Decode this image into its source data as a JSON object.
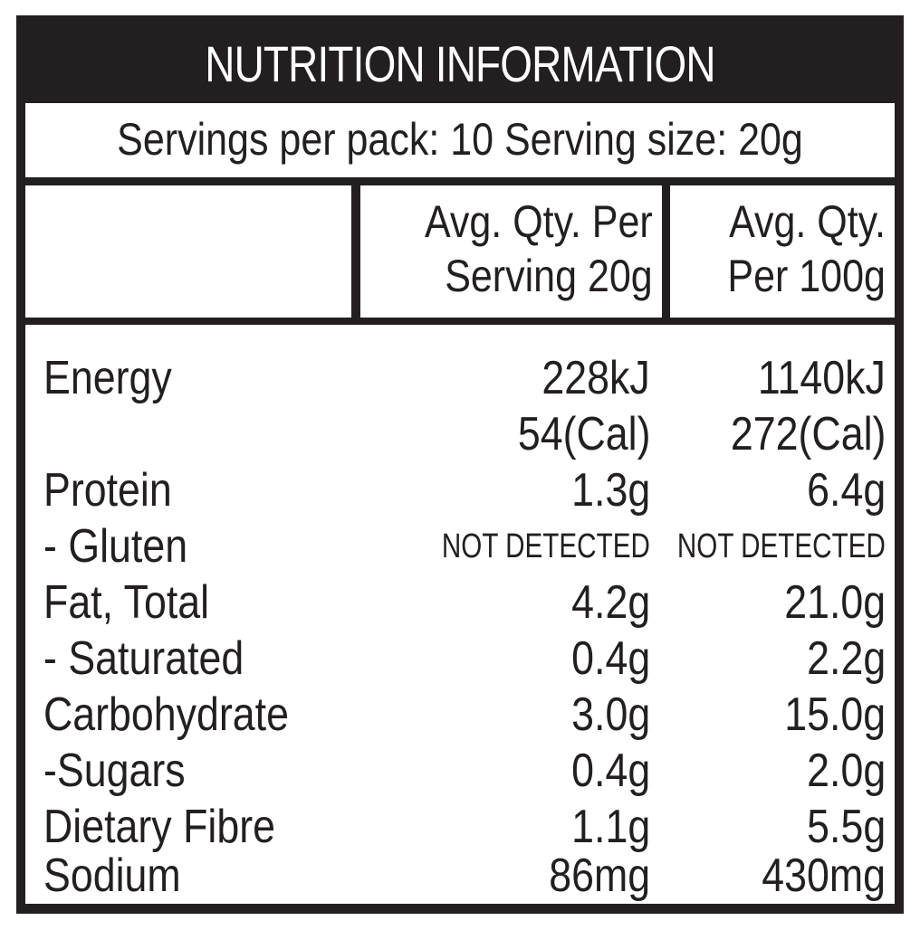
{
  "title": "NUTRITION INFORMATION",
  "servings_line": "Servings per pack: 10 Serving size: 20g",
  "headers": {
    "per_serving_line1": "Avg. Qty. Per",
    "per_serving_line2": "Serving 20g",
    "per_100g_line1": "Avg. Qty.",
    "per_100g_line2": "Per 100g"
  },
  "rows": [
    {
      "label": "Energy",
      "per_serving": "228kJ",
      "per_100g": "1140kJ"
    },
    {
      "label": "",
      "per_serving": "54(Cal)",
      "per_100g": "272(Cal)"
    },
    {
      "label": "Protein",
      "per_serving": "1.3g",
      "per_100g": "6.4g"
    },
    {
      "label": "- Gluten",
      "per_serving": "NOT DETECTED",
      "per_100g": "NOT DETECTED"
    },
    {
      "label": "Fat, Total",
      "per_serving": "4.2g",
      "per_100g": "21.0g"
    },
    {
      "label": "- Saturated",
      "per_serving": "0.4g",
      "per_100g": "2.2g"
    },
    {
      "label": "Carbohydrate",
      "per_serving": "3.0g",
      "per_100g": "15.0g"
    },
    {
      "label": "-Sugars",
      "per_serving": "0.4g",
      "per_100g": "2.0g"
    },
    {
      "label": "Dietary Fibre",
      "per_serving": "1.1g",
      "per_100g": "5.5g"
    },
    {
      "label": "Sodium",
      "per_serving": "86mg",
      "per_100g": "430mg"
    }
  ]
}
